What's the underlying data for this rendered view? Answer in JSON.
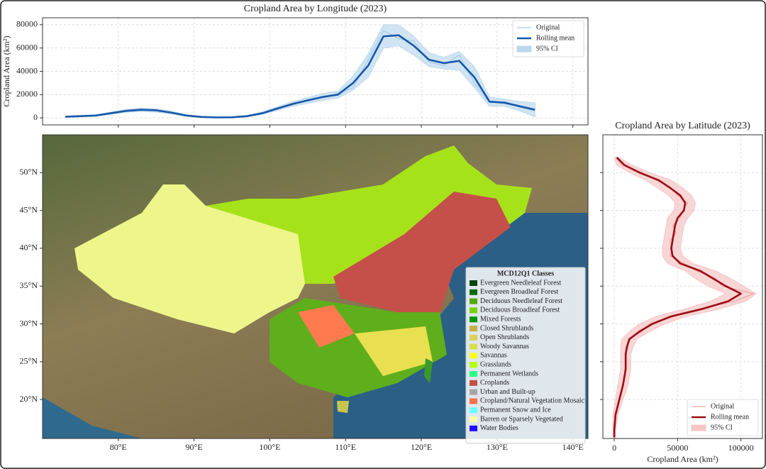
{
  "chart_data": [
    {
      "type": "line",
      "title": "Cropland Area by Longitude (2023)",
      "ylabel": "Cropland Area (km²)",
      "x": [
        73,
        75,
        77,
        79,
        81,
        83,
        85,
        87,
        89,
        91,
        93,
        95,
        97,
        99,
        101,
        103,
        105,
        107,
        109,
        111,
        113,
        115,
        117,
        119,
        121,
        123,
        125,
        127,
        129,
        131,
        133,
        135
      ],
      "series": [
        {
          "name": "Original",
          "color": "#a9cbe8",
          "values": [
            800,
            1800,
            2200,
            3500,
            6500,
            7500,
            6000,
            5000,
            1500,
            900,
            300,
            600,
            1200,
            4500,
            9000,
            11000,
            16000,
            17000,
            21000,
            26000,
            50000,
            75000,
            68000,
            66000,
            48000,
            45000,
            54000,
            30000,
            13000,
            14000,
            9000,
            6000
          ]
        },
        {
          "name": "Rolling mean",
          "color": "#1558a8",
          "values": [
            1000,
            1500,
            2000,
            4000,
            6000,
            7000,
            6500,
            4500,
            2000,
            800,
            400,
            500,
            1500,
            4000,
            8000,
            12000,
            15000,
            18000,
            20000,
            30000,
            45000,
            70000,
            71000,
            62000,
            50000,
            47000,
            49000,
            35000,
            14000,
            13000,
            10000,
            7000
          ]
        },
        {
          "name": "95% CI",
          "color": "#bcd8ee",
          "lower": [
            500,
            900,
            1300,
            3000,
            4800,
            5500,
            5000,
            3300,
            1200,
            300,
            0,
            100,
            900,
            3000,
            6500,
            10000,
            12500,
            15000,
            17000,
            24000,
            35000,
            60000,
            62000,
            54000,
            44000,
            42000,
            41000,
            26000,
            10000,
            10000,
            6000,
            1000
          ],
          "upper": [
            1500,
            2100,
            2700,
            5000,
            7200,
            8500,
            8000,
            5700,
            2800,
            1300,
            800,
            900,
            2100,
            5000,
            9500,
            14000,
            17500,
            21000,
            23000,
            36000,
            55000,
            80000,
            80000,
            70000,
            56000,
            52000,
            57000,
            44000,
            18000,
            16000,
            14000,
            13000
          ]
        }
      ],
      "xlim": [
        70,
        142
      ],
      "ylim": [
        -6000,
        86000
      ],
      "yticks": [
        0,
        20000,
        40000,
        60000,
        80000
      ],
      "grid": true,
      "legend": "upper right"
    },
    {
      "type": "line",
      "orientation": "vertical",
      "title": "Cropland Area by Latitude (2023)",
      "xlabel": "Cropland Area (km²)",
      "y": [
        15,
        16,
        17,
        18,
        19,
        20,
        21,
        22,
        23,
        24,
        25,
        26,
        27,
        28,
        29,
        30,
        31,
        32,
        33,
        34,
        35,
        36,
        37,
        38,
        39,
        40,
        41,
        42,
        43,
        44,
        45,
        46,
        47,
        48,
        49,
        50,
        51,
        52
      ],
      "series": [
        {
          "name": "Original",
          "color": "#f2a3a3",
          "values": [
            0,
            0,
            800,
            800,
            3000,
            3500,
            6000,
            6500,
            8500,
            8500,
            9500,
            8500,
            11000,
            11000,
            22000,
            28000,
            48000,
            68000,
            95000,
            110000,
            85000,
            80000,
            65000,
            55000,
            44000,
            46000,
            44000,
            49000,
            46000,
            52000,
            54000,
            58000,
            50000,
            45000,
            33000,
            22000,
            6000,
            1500
          ]
        },
        {
          "name": "Rolling mean",
          "color": "#9b0d14",
          "values": [
            0,
            0,
            500,
            1000,
            2500,
            4000,
            5500,
            7000,
            8000,
            9000,
            9000,
            9000,
            10000,
            12000,
            20000,
            30000,
            45000,
            70000,
            90000,
            100000,
            88000,
            78000,
            68000,
            52000,
            46000,
            45000,
            46000,
            47000,
            48000,
            50000,
            55000,
            56000,
            52000,
            44000,
            35000,
            20000,
            8000,
            2000
          ]
        },
        {
          "name": "95% CI",
          "color": "#f7c4c4",
          "lower": [
            -1000,
            -1000,
            -1000,
            -1000,
            0,
            1000,
            2000,
            3000,
            4000,
            5000,
            5000,
            5000,
            5000,
            6000,
            12000,
            20000,
            33000,
            56000,
            76000,
            88000,
            74000,
            64000,
            56000,
            42000,
            38000,
            38000,
            39000,
            40000,
            41000,
            42000,
            47000,
            48000,
            43000,
            34000,
            25000,
            12000,
            2000,
            0
          ],
          "upper": [
            1000,
            1000,
            2000,
            3000,
            5000,
            7000,
            9000,
            11000,
            12000,
            13000,
            13000,
            13000,
            15000,
            18000,
            28000,
            40000,
            57000,
            84000,
            104000,
            112000,
            102000,
            92000,
            80000,
            62000,
            54000,
            52000,
            53000,
            54000,
            55000,
            58000,
            63000,
            64000,
            61000,
            54000,
            45000,
            28000,
            14000,
            4000
          ]
        }
      ],
      "xlim": [
        -9000,
        117000
      ],
      "ylim": [
        14.85,
        55
      ],
      "xticks": [
        0,
        50000,
        100000
      ],
      "grid": true,
      "legend": "lower right"
    },
    {
      "type": "map",
      "xlim": [
        70,
        142
      ],
      "ylim": [
        14.85,
        55
      ],
      "xticks": [
        {
          "value": 80,
          "label": "80°E"
        },
        {
          "value": 90,
          "label": "90°E"
        },
        {
          "value": 100,
          "label": "100°E"
        },
        {
          "value": 110,
          "label": "110°E"
        },
        {
          "value": 120,
          "label": "120°E"
        },
        {
          "value": 130,
          "label": "130°E"
        },
        {
          "value": 140,
          "label": "140°E"
        }
      ],
      "yticks": [
        {
          "value": 20,
          "label": "20°N"
        },
        {
          "value": 25,
          "label": "25°N"
        },
        {
          "value": 30,
          "label": "30°N"
        },
        {
          "value": 35,
          "label": "35°N"
        },
        {
          "value": 40,
          "label": "40°N"
        },
        {
          "value": 45,
          "label": "45°N"
        },
        {
          "value": 50,
          "label": "50°N"
        }
      ],
      "legend_title": "MCD12Q1 Classes",
      "classes": [
        {
          "name": "Evergreen Needleleaf Forest",
          "color": "#05450a"
        },
        {
          "name": "Evergreen Broadleaf Forest",
          "color": "#086a10"
        },
        {
          "name": "Deciduous Needleleaf Forest",
          "color": "#54a708"
        },
        {
          "name": "Deciduous Broadleaf Forest",
          "color": "#78d203"
        },
        {
          "name": "Mixed Forests",
          "color": "#009900"
        },
        {
          "name": "Closed Shrublands",
          "color": "#c6b044"
        },
        {
          "name": "Open Shrublands",
          "color": "#dcd159"
        },
        {
          "name": "Woody Savannas",
          "color": "#dade48"
        },
        {
          "name": "Savannas",
          "color": "#fbff13"
        },
        {
          "name": "Grasslands",
          "color": "#b6ff05"
        },
        {
          "name": "Permanent Wetlands",
          "color": "#27ff87"
        },
        {
          "name": "Croplands",
          "color": "#c24f44"
        },
        {
          "name": "Urban and Built-up",
          "color": "#a5a5a5"
        },
        {
          "name": "Cropland/Natural Vegetation Mosaic",
          "color": "#ff6d4c"
        },
        {
          "name": "Permanent Snow and Ice",
          "color": "#69fff8"
        },
        {
          "name": "Barren or Sparsely Vegetated",
          "color": "#f9ffa4"
        },
        {
          "name": "Water Bodies",
          "color": "#1c0dff"
        }
      ]
    }
  ]
}
